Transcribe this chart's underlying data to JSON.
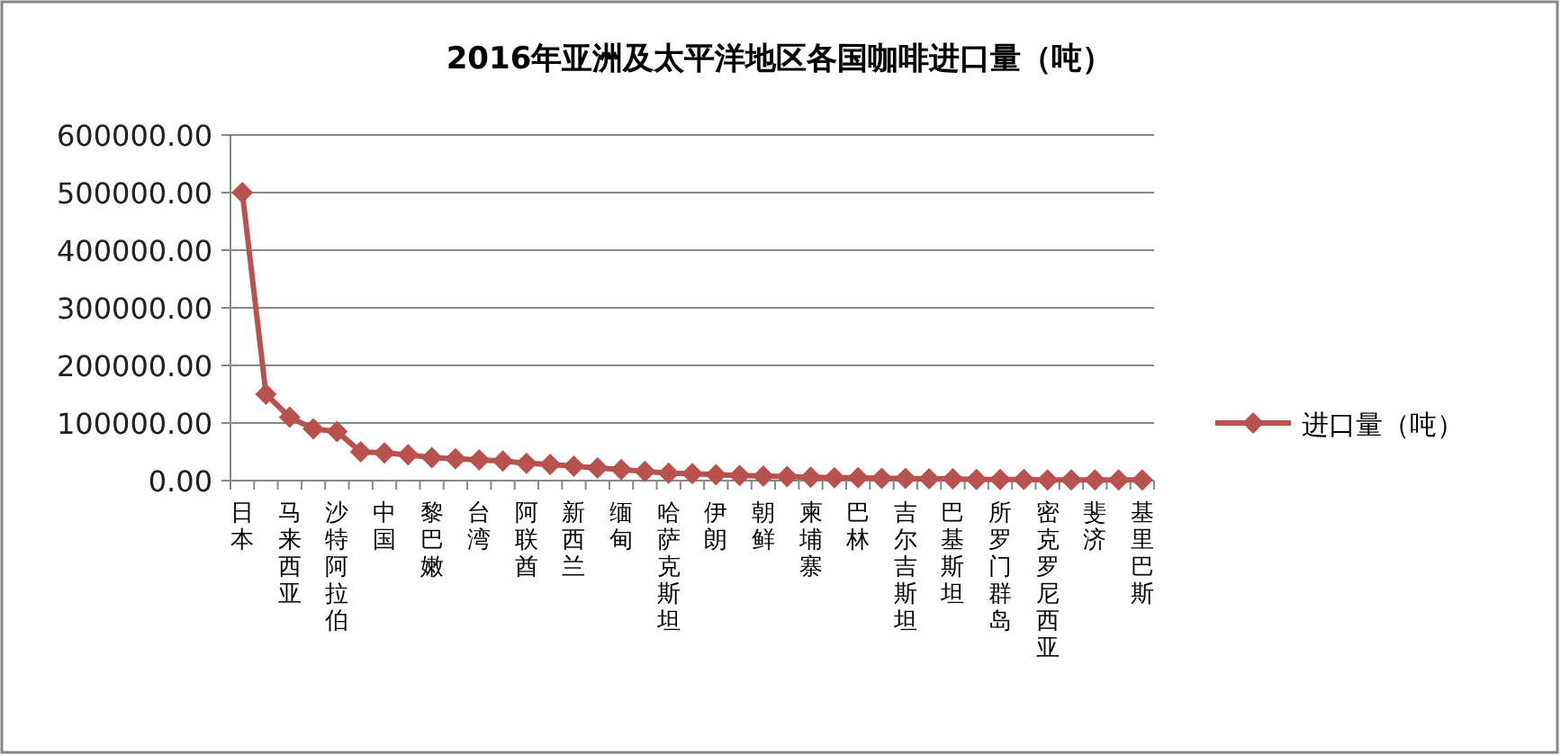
{
  "chart_data": {
    "type": "line",
    "title": "2016年亚洲及太平洋地区各国咖啡进口量（吨）",
    "categories": [
      "日本",
      null,
      "马来西亚",
      null,
      "沙特阿拉伯",
      null,
      "中国",
      null,
      "黎巴嫩",
      null,
      "台湾",
      null,
      "阿联酋",
      null,
      "新西兰",
      null,
      "缅甸",
      null,
      "哈萨克斯坦",
      null,
      "伊朗",
      null,
      "朝鲜",
      null,
      "柬埔寨",
      null,
      "巴林",
      null,
      "吉尔吉斯坦",
      null,
      "巴基斯坦",
      null,
      "所罗门群岛",
      null,
      "密克罗尼西亚",
      null,
      "斐济",
      null,
      "基里巴斯"
    ],
    "series": [
      {
        "name": "进口量（吨）",
        "color": "#b9514e",
        "values": [
          500000,
          150000,
          110000,
          90000,
          85000,
          50000,
          48000,
          45000,
          40000,
          38000,
          36000,
          34000,
          30000,
          28000,
          25000,
          22000,
          19000,
          16000,
          13000,
          12000,
          10000,
          9000,
          8000,
          7000,
          6000,
          5000,
          5000,
          4000,
          4000,
          3000,
          3000,
          2000,
          2000,
          2000,
          1000,
          1000,
          1000,
          1000,
          1000
        ]
      }
    ],
    "ylim": [
      0,
      600000
    ],
    "yticks": [
      {
        "value": 0,
        "label": "0.00"
      },
      {
        "value": 100000,
        "label": "100000.00"
      },
      {
        "value": 200000,
        "label": "200000.00"
      },
      {
        "value": 300000,
        "label": "300000.00"
      },
      {
        "value": 400000,
        "label": "400000.00"
      },
      {
        "value": 500000,
        "label": "500000.00"
      },
      {
        "value": 600000,
        "label": "600000.00"
      }
    ],
    "grid": "y",
    "legend": "right",
    "marker": "diamond",
    "line_style": "solid"
  }
}
